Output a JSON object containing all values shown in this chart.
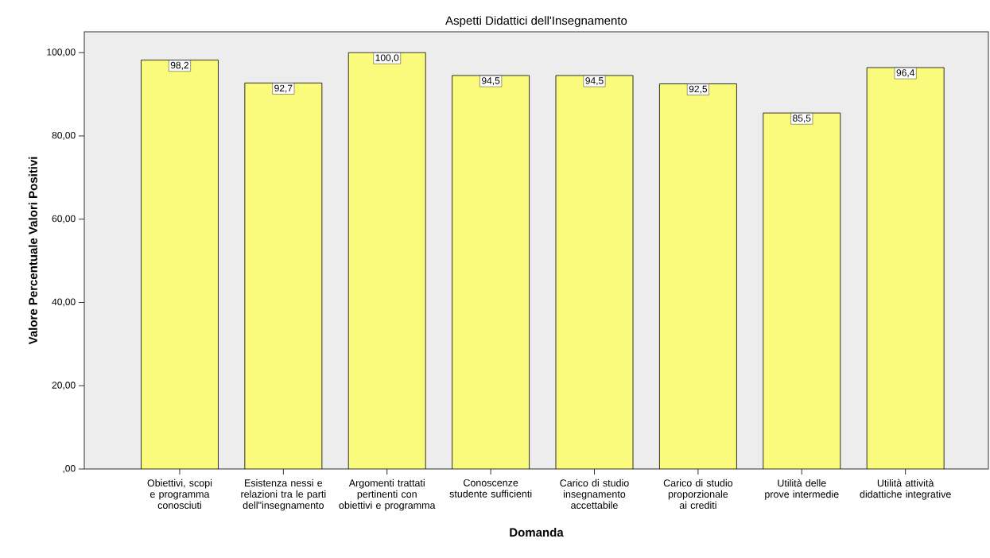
{
  "chart_data": {
    "type": "bar",
    "title": "Aspetti Didattici dell'Insegnamento",
    "xlabel": "Domanda",
    "ylabel": "Valore Percentuale Valori Positivi",
    "categories": [
      "Obiettivi, scopi e programma conosciuti",
      "Esistenza nessi e relazioni tra le parti dell\"insegnamento",
      "Argomenti trattati pertinenti con obiettivi e programma",
      "Conoscenze studente sufficienti",
      "Carico di studio insegnamento accettabile",
      "Carico di studio proporzionale ai crediti",
      "Utilità delle prove intermedie",
      "Utilità attività didattiche integrative"
    ],
    "values": [
      98.2,
      92.7,
      100.0,
      94.5,
      94.5,
      92.5,
      85.5,
      96.4
    ],
    "value_labels": [
      "98,2",
      "92,7",
      "100,0",
      "94,5",
      "94,5",
      "92,5",
      "85,5",
      "96,4"
    ],
    "color": "#fafa7d",
    "ylim": [
      0,
      105
    ],
    "yticks": [
      {
        "value": 0,
        "label": ",00"
      },
      {
        "value": 20,
        "label": "20,00"
      },
      {
        "value": 40,
        "label": "40,00"
      },
      {
        "value": 60,
        "label": "60,00"
      },
      {
        "value": 80,
        "label": "80,00"
      },
      {
        "value": 100,
        "label": "100,00"
      }
    ],
    "grid": false
  }
}
